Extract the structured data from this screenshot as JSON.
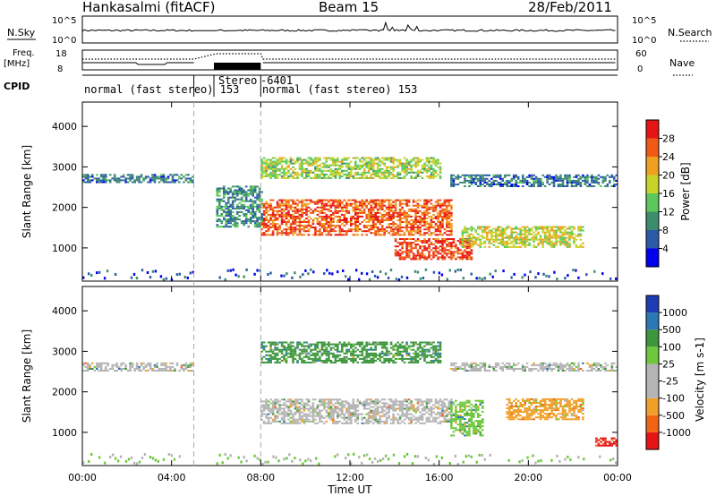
{
  "header": {
    "station": "Hankasalmi (fitACF)",
    "beam": "Beam 15",
    "date": "28/Feb/2011"
  },
  "strip": {
    "nsky_label": "N.Sky",
    "nsky_ticks": [
      "10^5",
      "10^0"
    ],
    "nsearch_label": "N.Search",
    "nsearch_ticks": [
      "10^5",
      "10^0"
    ],
    "freq_label": "Freq.",
    "freq_unit": "[MHz]",
    "freq_ticks": [
      "18",
      "8"
    ],
    "nave_label": "Nave",
    "nave_ticks": [
      "60",
      "0"
    ],
    "cpid_label": "CPID",
    "cpid_segments": [
      {
        "text": "normal (fast stereo) 153",
        "start": 0,
        "end": 5.0
      },
      {
        "text": "Stereo",
        "start": 5.9,
        "end": 8.0
      },
      {
        "text": "-6401",
        "start": 8.0,
        "end": 8.1
      },
      {
        "text": "normal (fast stereo) 153",
        "start": 8.0,
        "end": 24.0
      }
    ]
  },
  "power_panel": {
    "ylabel": "Slant Range [km]",
    "yticks": [
      "1000",
      "2000",
      "3000",
      "4000"
    ],
    "colorbar_label": "Power [dB]",
    "colorbar_ticks": [
      "4",
      "8",
      "12",
      "16",
      "20",
      "24",
      "28"
    ],
    "colors": [
      "#0000ee",
      "#2a5aa8",
      "#3c8c6e",
      "#5ac85a",
      "#c8d228",
      "#f0a020",
      "#f05a14",
      "#e61414"
    ]
  },
  "velocity_panel": {
    "ylabel": "Slant Range [km]",
    "yticks": [
      "1000",
      "2000",
      "3000",
      "4000"
    ],
    "colorbar_label": "Velocity [m s-1]",
    "colorbar_ticks": [
      "1000",
      "500",
      "100",
      "25",
      "-25",
      "-100",
      "-500",
      "-1000"
    ],
    "colors": [
      "#1e3cb4",
      "#2a78b4",
      "#3c963c",
      "#6ec83c",
      "#b4b4b4",
      "#b4b4b4",
      "#f0a028",
      "#f06414",
      "#e61414"
    ]
  },
  "xaxis": {
    "label": "Time UT",
    "ticks": [
      "00:00",
      "04:00",
      "08:00",
      "12:00",
      "16:00",
      "20:00",
      "00:00"
    ]
  },
  "chart_data": [
    {
      "type": "heatmap",
      "title": "Power [dB]",
      "xlabel": "",
      "ylabel": "Slant Range [km]",
      "xlim": [
        0,
        24
      ],
      "ylim": [
        180,
        4600
      ],
      "clim": [
        0,
        32
      ],
      "x_unit": "hours UT",
      "features": [
        {
          "name": "",
          "t_start": 0.0,
          "t_end": 4.9,
          "r_low": 2600,
          "r_high": 2800,
          "power": 8
        },
        {
          "name": "",
          "t_start": 8.0,
          "t_end": 16.5,
          "r_low": 1300,
          "r_high": 2200,
          "power": 26
        },
        {
          "name": "",
          "t_start": 14.0,
          "t_end": 17.5,
          "r_low": 700,
          "r_high": 1200,
          "power": 28
        },
        {
          "name": "",
          "t_start": 8.0,
          "t_end": 16.0,
          "r_low": 2700,
          "r_high": 3200,
          "power": 16
        },
        {
          "name": "",
          "t_start": 16.5,
          "t_end": 24.0,
          "r_low": 2500,
          "r_high": 2800,
          "power": 8
        },
        {
          "name": "",
          "t_start": 17.0,
          "t_end": 22.5,
          "r_low": 1000,
          "r_high": 1500,
          "power": 18
        },
        {
          "name": "",
          "t_start": 6.0,
          "t_end": 8.0,
          "r_low": 1500,
          "r_high": 2500,
          "power": 10
        }
      ]
    },
    {
      "type": "heatmap",
      "title": "Velocity [m s-1]",
      "xlabel": "Time UT",
      "ylabel": "Slant Range [km]",
      "xlim": [
        0,
        24
      ],
      "ylim": [
        180,
        4600
      ],
      "clim": [
        -1000,
        1000
      ],
      "x_unit": "hours UT",
      "features": [
        {
          "name": "",
          "t_start": 0.0,
          "t_end": 4.9,
          "r_low": 2500,
          "r_high": 2700,
          "velocity": 0
        },
        {
          "name": "",
          "t_start": 8.0,
          "t_end": 16.5,
          "r_low": 1200,
          "r_high": 1800,
          "velocity": 0
        },
        {
          "name": "",
          "t_start": 8.0,
          "t_end": 16.0,
          "r_low": 2700,
          "r_high": 3200,
          "velocity": 150
        },
        {
          "name": "",
          "t_start": 16.5,
          "t_end": 18.0,
          "r_low": 900,
          "r_high": 1800,
          "velocity": 100
        },
        {
          "name": "",
          "t_start": 19.0,
          "t_end": 22.5,
          "r_low": 1300,
          "r_high": 1800,
          "velocity": -200
        },
        {
          "name": "",
          "t_start": 16.5,
          "t_end": 24.0,
          "r_low": 2500,
          "r_high": 2700,
          "velocity": 0
        },
        {
          "name": "",
          "t_start": 23.0,
          "t_end": 24.0,
          "r_low": 650,
          "r_high": 850,
          "velocity": -500
        }
      ]
    }
  ]
}
